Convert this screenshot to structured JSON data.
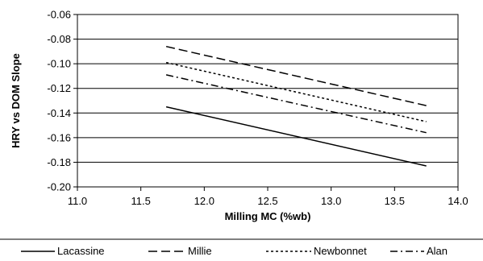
{
  "chart_data": {
    "type": "line",
    "title": "",
    "xlabel": "Milling MC (%wb)",
    "ylabel": "HRY vs DOM Slope",
    "xlim": [
      11.0,
      14.0
    ],
    "ylim": [
      -0.2,
      -0.06
    ],
    "x_ticks": [
      "11.0",
      "11.5",
      "12.0",
      "12.5",
      "13.0",
      "13.5",
      "14.0"
    ],
    "y_ticks": [
      "-0.06",
      "-0.08",
      "-0.10",
      "-0.12",
      "-0.14",
      "-0.16",
      "-0.18",
      "-0.20"
    ],
    "grid": "horizontal",
    "legend_position": "bottom",
    "series": [
      {
        "name": "Lacassine",
        "dash": "solid",
        "x": [
          11.7,
          13.75
        ],
        "y": [
          -0.135,
          -0.183
        ]
      },
      {
        "name": "Millie",
        "dash": "dashed",
        "x": [
          11.7,
          13.75
        ],
        "y": [
          -0.086,
          -0.134
        ]
      },
      {
        "name": "Newbonnet",
        "dash": "dotted",
        "x": [
          11.7,
          13.75
        ],
        "y": [
          -0.099,
          -0.147
        ]
      },
      {
        "name": "Alan",
        "dash": "dashdot",
        "x": [
          11.7,
          13.75
        ],
        "y": [
          -0.109,
          -0.156
        ]
      }
    ]
  }
}
